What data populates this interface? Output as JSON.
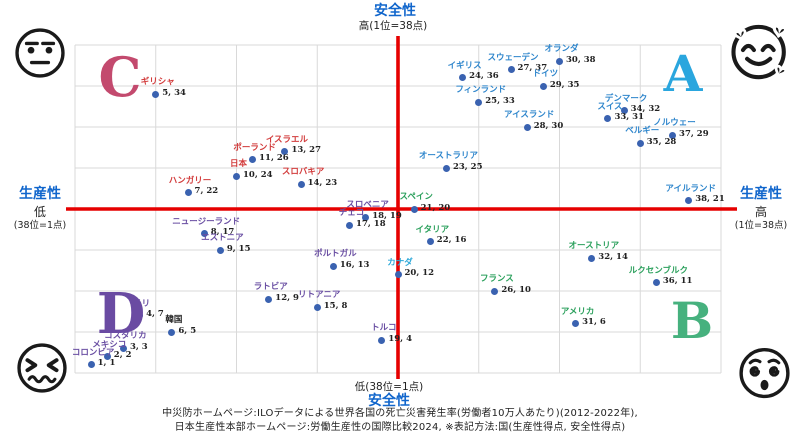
{
  "colors": {
    "axis_blue": "#1166cc",
    "cross_red": "#e60000",
    "grid": "#d9d9d9",
    "dot": "#3a62b0",
    "value_text": "#222222"
  },
  "axes": {
    "top": {
      "title": "安全性",
      "sub": "高(1位=38点)"
    },
    "bottom": {
      "sub": "低(38位=1点)",
      "title": "安全性"
    },
    "left": {
      "title": "生産性",
      "level": "低",
      "scale": "(38位=1点)"
    },
    "right": {
      "title": "生産性",
      "level": "高",
      "scale": "(1位=38点)"
    }
  },
  "quadrants": {
    "a": {
      "label": "A",
      "color": "#2aa6de"
    },
    "b": {
      "label": "B",
      "color": "#46b17e"
    },
    "c": {
      "label": "C",
      "color": "#c34a6e"
    },
    "d": {
      "label": "D",
      "color": "#6a4ba2"
    }
  },
  "emojis": {
    "top_left": "expressionless-face",
    "top_right": "smiling-face-with-hearts",
    "bottom_left": "persevering-face",
    "bottom_right": "face-with-spiral-eyes"
  },
  "footer": {
    "line1": "中災防ホームページ:ILOデータによる世界各国の死亡災害発生率(労働者10万人あたり)(2012-2022年),",
    "line2": "日本生産性本部ホームページ:労働生産性の国際比較2024, ※表記方法:国(生産性得点, 安全性得点)"
  },
  "chart_data": {
    "type": "scatter",
    "xlabel": "生産性",
    "ylabel": "安全性",
    "xlim": [
      0,
      40
    ],
    "ylim": [
      0,
      40
    ],
    "x_scale_note": "低(38位=1点) → 高(1位=38点)",
    "y_scale_note": "低(38位=1点) → 高(1位=38点)",
    "point_format": "国(生産性得点, 安全性得点)",
    "grid": true,
    "group_colors": {
      "red": "#d23b3b",
      "blue": "#2f86cc",
      "green": "#2ba05c",
      "purple": "#6a4fa3",
      "cyan": "#2aa7d8",
      "black": "#222222"
    },
    "points": [
      {
        "name": "ギリシャ",
        "x": 5,
        "y": 34,
        "group": "red"
      },
      {
        "name": "イスラエル",
        "x": 13,
        "y": 27,
        "group": "red"
      },
      {
        "name": "ポーランド",
        "x": 11,
        "y": 26,
        "group": "red"
      },
      {
        "name": "日本",
        "x": 10,
        "y": 24,
        "group": "red"
      },
      {
        "name": "スロバキア",
        "x": 14,
        "y": 23,
        "group": "red"
      },
      {
        "name": "ハンガリー",
        "x": 7,
        "y": 22,
        "group": "red"
      },
      {
        "name": "オランダ",
        "x": 30,
        "y": 38,
        "group": "blue"
      },
      {
        "name": "スウェーデン",
        "x": 27,
        "y": 37,
        "group": "blue"
      },
      {
        "name": "イギリス",
        "x": 24,
        "y": 36,
        "group": "blue"
      },
      {
        "name": "ドイツ",
        "x": 29,
        "y": 35,
        "group": "blue"
      },
      {
        "name": "フィンランド",
        "x": 25,
        "y": 33,
        "group": "blue"
      },
      {
        "name": "デンマーク",
        "x": 34,
        "y": 32,
        "group": "blue"
      },
      {
        "name": "スイス",
        "x": 33,
        "y": 31,
        "group": "blue"
      },
      {
        "name": "アイスランド",
        "x": 28,
        "y": 30,
        "group": "blue"
      },
      {
        "name": "ノルウェー",
        "x": 37,
        "y": 29,
        "group": "blue"
      },
      {
        "name": "ベルギー",
        "x": 35,
        "y": 28,
        "group": "blue"
      },
      {
        "name": "オーストラリア",
        "x": 23,
        "y": 25,
        "group": "blue"
      },
      {
        "name": "アイルランド",
        "x": 38,
        "y": 21,
        "group": "blue"
      },
      {
        "name": "スペイン",
        "x": 21,
        "y": 20,
        "group": "green"
      },
      {
        "name": "イタリア",
        "x": 22,
        "y": 16,
        "group": "green"
      },
      {
        "name": "オーストリア",
        "x": 32,
        "y": 14,
        "group": "green"
      },
      {
        "name": "ルクセンブルク",
        "x": 36,
        "y": 11,
        "group": "green"
      },
      {
        "name": "フランス",
        "x": 26,
        "y": 10,
        "group": "green"
      },
      {
        "name": "アメリカ",
        "x": 31,
        "y": 6,
        "group": "green"
      },
      {
        "name": "スロベニア",
        "x": 18,
        "y": 19,
        "group": "purple"
      },
      {
        "name": "チェコ",
        "x": 17,
        "y": 18,
        "group": "purple"
      },
      {
        "name": "ニュージーランド",
        "x": 8,
        "y": 17,
        "group": "purple"
      },
      {
        "name": "エストニア",
        "x": 9,
        "y": 15,
        "group": "purple"
      },
      {
        "name": "ポルトガル",
        "x": 16,
        "y": 13,
        "group": "purple"
      },
      {
        "name": "ラトビア",
        "x": 12,
        "y": 9,
        "group": "purple"
      },
      {
        "name": "リトアニア",
        "x": 15,
        "y": 8,
        "group": "purple"
      },
      {
        "name": "チリ",
        "x": 4,
        "y": 7,
        "group": "purple"
      },
      {
        "name": "トルコ",
        "x": 19,
        "y": 4,
        "group": "purple"
      },
      {
        "name": "コスタリカ",
        "x": 3,
        "y": 3,
        "group": "purple"
      },
      {
        "name": "メキシコ",
        "x": 2,
        "y": 2,
        "group": "purple"
      },
      {
        "name": "コロンビア",
        "x": 1,
        "y": 1,
        "group": "purple"
      },
      {
        "name": "カナダ",
        "x": 20,
        "y": 12,
        "group": "cyan"
      },
      {
        "name": "韓国",
        "x": 6,
        "y": 5,
        "group": "black"
      }
    ]
  }
}
